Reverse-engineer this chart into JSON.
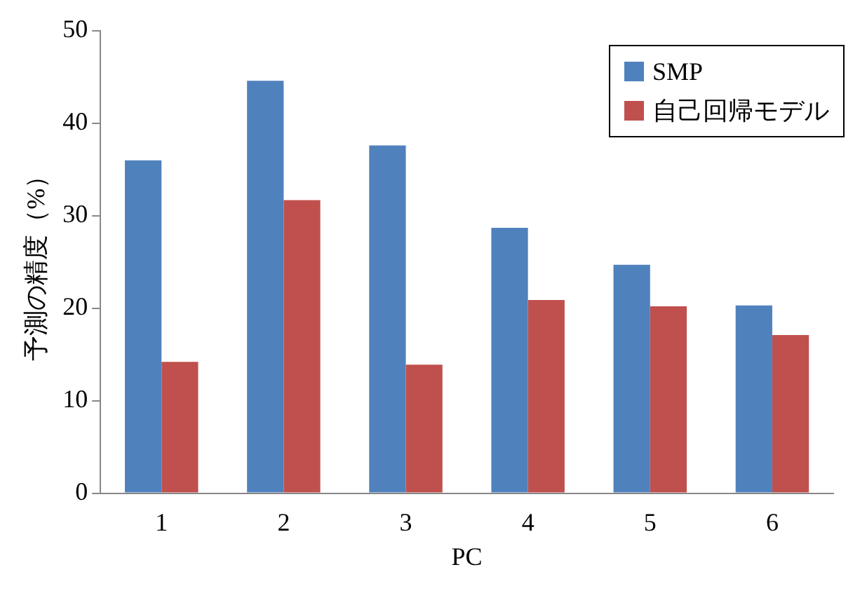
{
  "chart_data": {
    "type": "bar",
    "xlabel": "PC",
    "ylabel": "予測の精度（%）",
    "categories": [
      "1",
      "2",
      "3",
      "4",
      "5",
      "6"
    ],
    "series": [
      {
        "name": "SMP",
        "color": "#4f81bd",
        "values": [
          36.0,
          44.6,
          37.6,
          28.7,
          24.7,
          20.3
        ]
      },
      {
        "name": "自己回帰モデル",
        "color": "#c0504d",
        "values": [
          14.2,
          31.7,
          13.9,
          20.9,
          20.2,
          17.1
        ]
      }
    ],
    "ylim": [
      0,
      50
    ],
    "yticks": [
      0,
      10,
      20,
      30,
      40,
      50
    ],
    "grid": false,
    "legend": "top right"
  }
}
